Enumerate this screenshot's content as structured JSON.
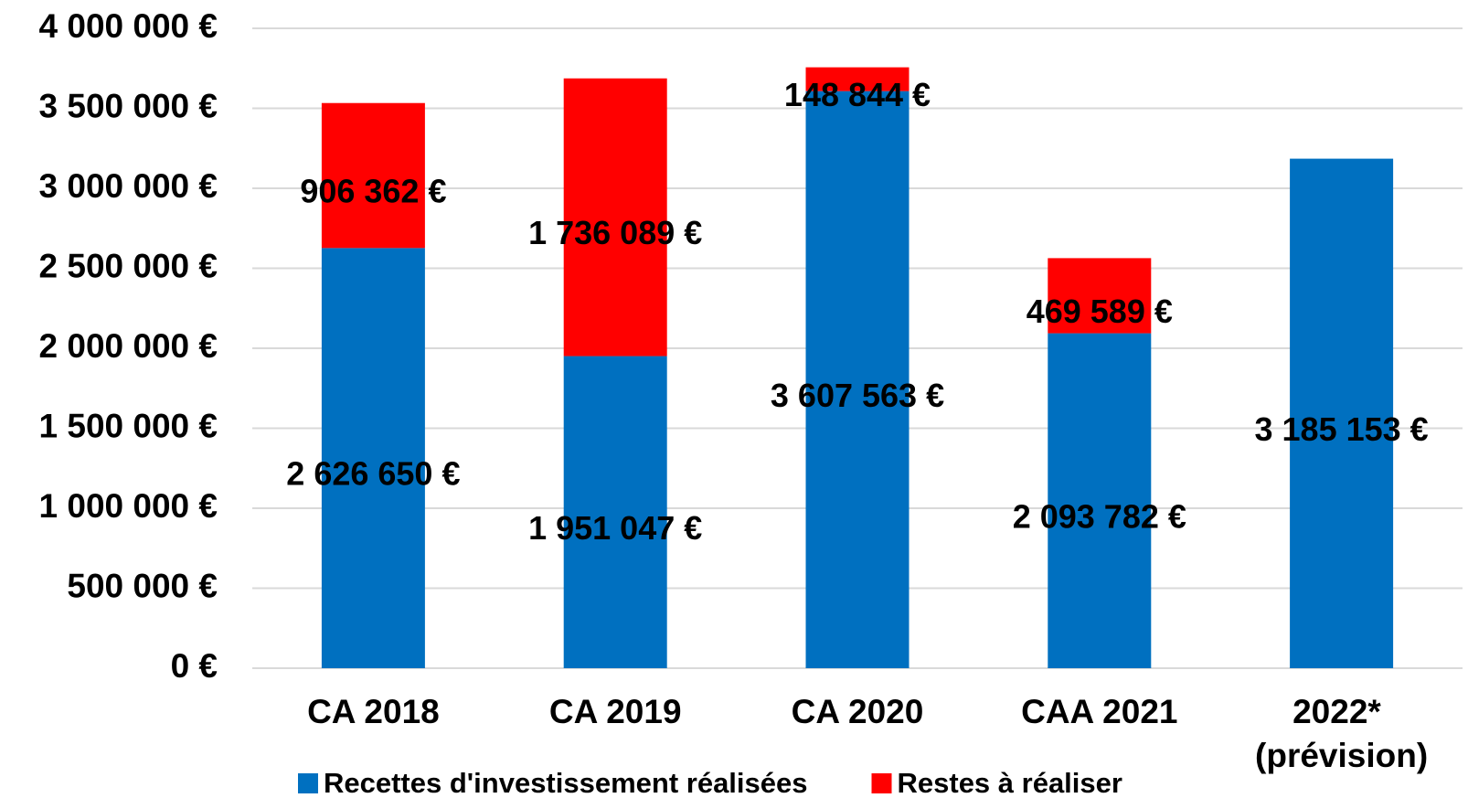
{
  "chart_data": {
    "type": "stacked_bar",
    "categories": [
      "CA 2018",
      "CA 2019",
      "CA 2020",
      "CAA 2021",
      "2022* (prévision)"
    ],
    "series": [
      {
        "name": "Recettes d'investissement réalisées",
        "color": "#0070c0",
        "values": [
          2626650,
          1951047,
          3607563,
          2093782,
          3185153
        ],
        "value_labels": [
          "2 626 650 €",
          "1 951 047 €",
          "3 607 563 €",
          "2 093 782 €",
          "3 185 153 €"
        ]
      },
      {
        "name": "Restes à réaliser",
        "color": "#ff0000",
        "values": [
          906362,
          1736089,
          148844,
          469589,
          null
        ],
        "value_labels": [
          "906 362 €",
          "1 736 089 €",
          "148 844 €",
          "469 589 €",
          null
        ]
      }
    ],
    "ylim": [
      0,
      4000000
    ],
    "yticks": [
      {
        "value": 0,
        "label": "0 €"
      },
      {
        "value": 500000,
        "label": "500 000 €"
      },
      {
        "value": 1000000,
        "label": "1 000 000 €"
      },
      {
        "value": 1500000,
        "label": "1 500 000 €"
      },
      {
        "value": 2000000,
        "label": "2 000 000 €"
      },
      {
        "value": 2500000,
        "label": "2 500 000 €"
      },
      {
        "value": 3000000,
        "label": "3 000 000 €"
      },
      {
        "value": 3500000,
        "label": "3 500 000 €"
      },
      {
        "value": 4000000,
        "label": "4 000 000 €"
      }
    ],
    "grid": true,
    "legend": "bottom"
  }
}
